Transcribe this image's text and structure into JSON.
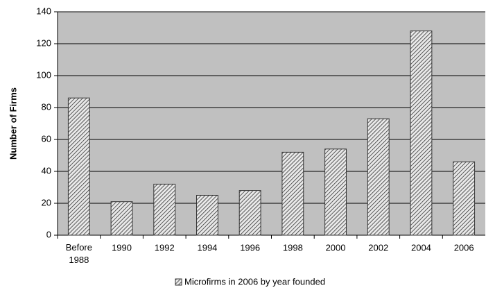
{
  "chart_data": {
    "type": "bar",
    "y_label": "Number of Firms",
    "categories": [
      "Before 1988",
      "1990",
      "1992",
      "1994",
      "1996",
      "1998",
      "2000",
      "2002",
      "2004",
      "2006"
    ],
    "series": [
      {
        "name": "Microfirms in 2006 by year founded",
        "color": "#333333",
        "values": [
          86,
          21,
          32,
          25,
          28,
          52,
          54,
          73,
          128,
          46
        ]
      }
    ],
    "ylim": [
      0,
      140
    ],
    "yticks": [
      0,
      20,
      40,
      60,
      80,
      100,
      120,
      140
    ],
    "grid": true,
    "legend": "bottom"
  }
}
